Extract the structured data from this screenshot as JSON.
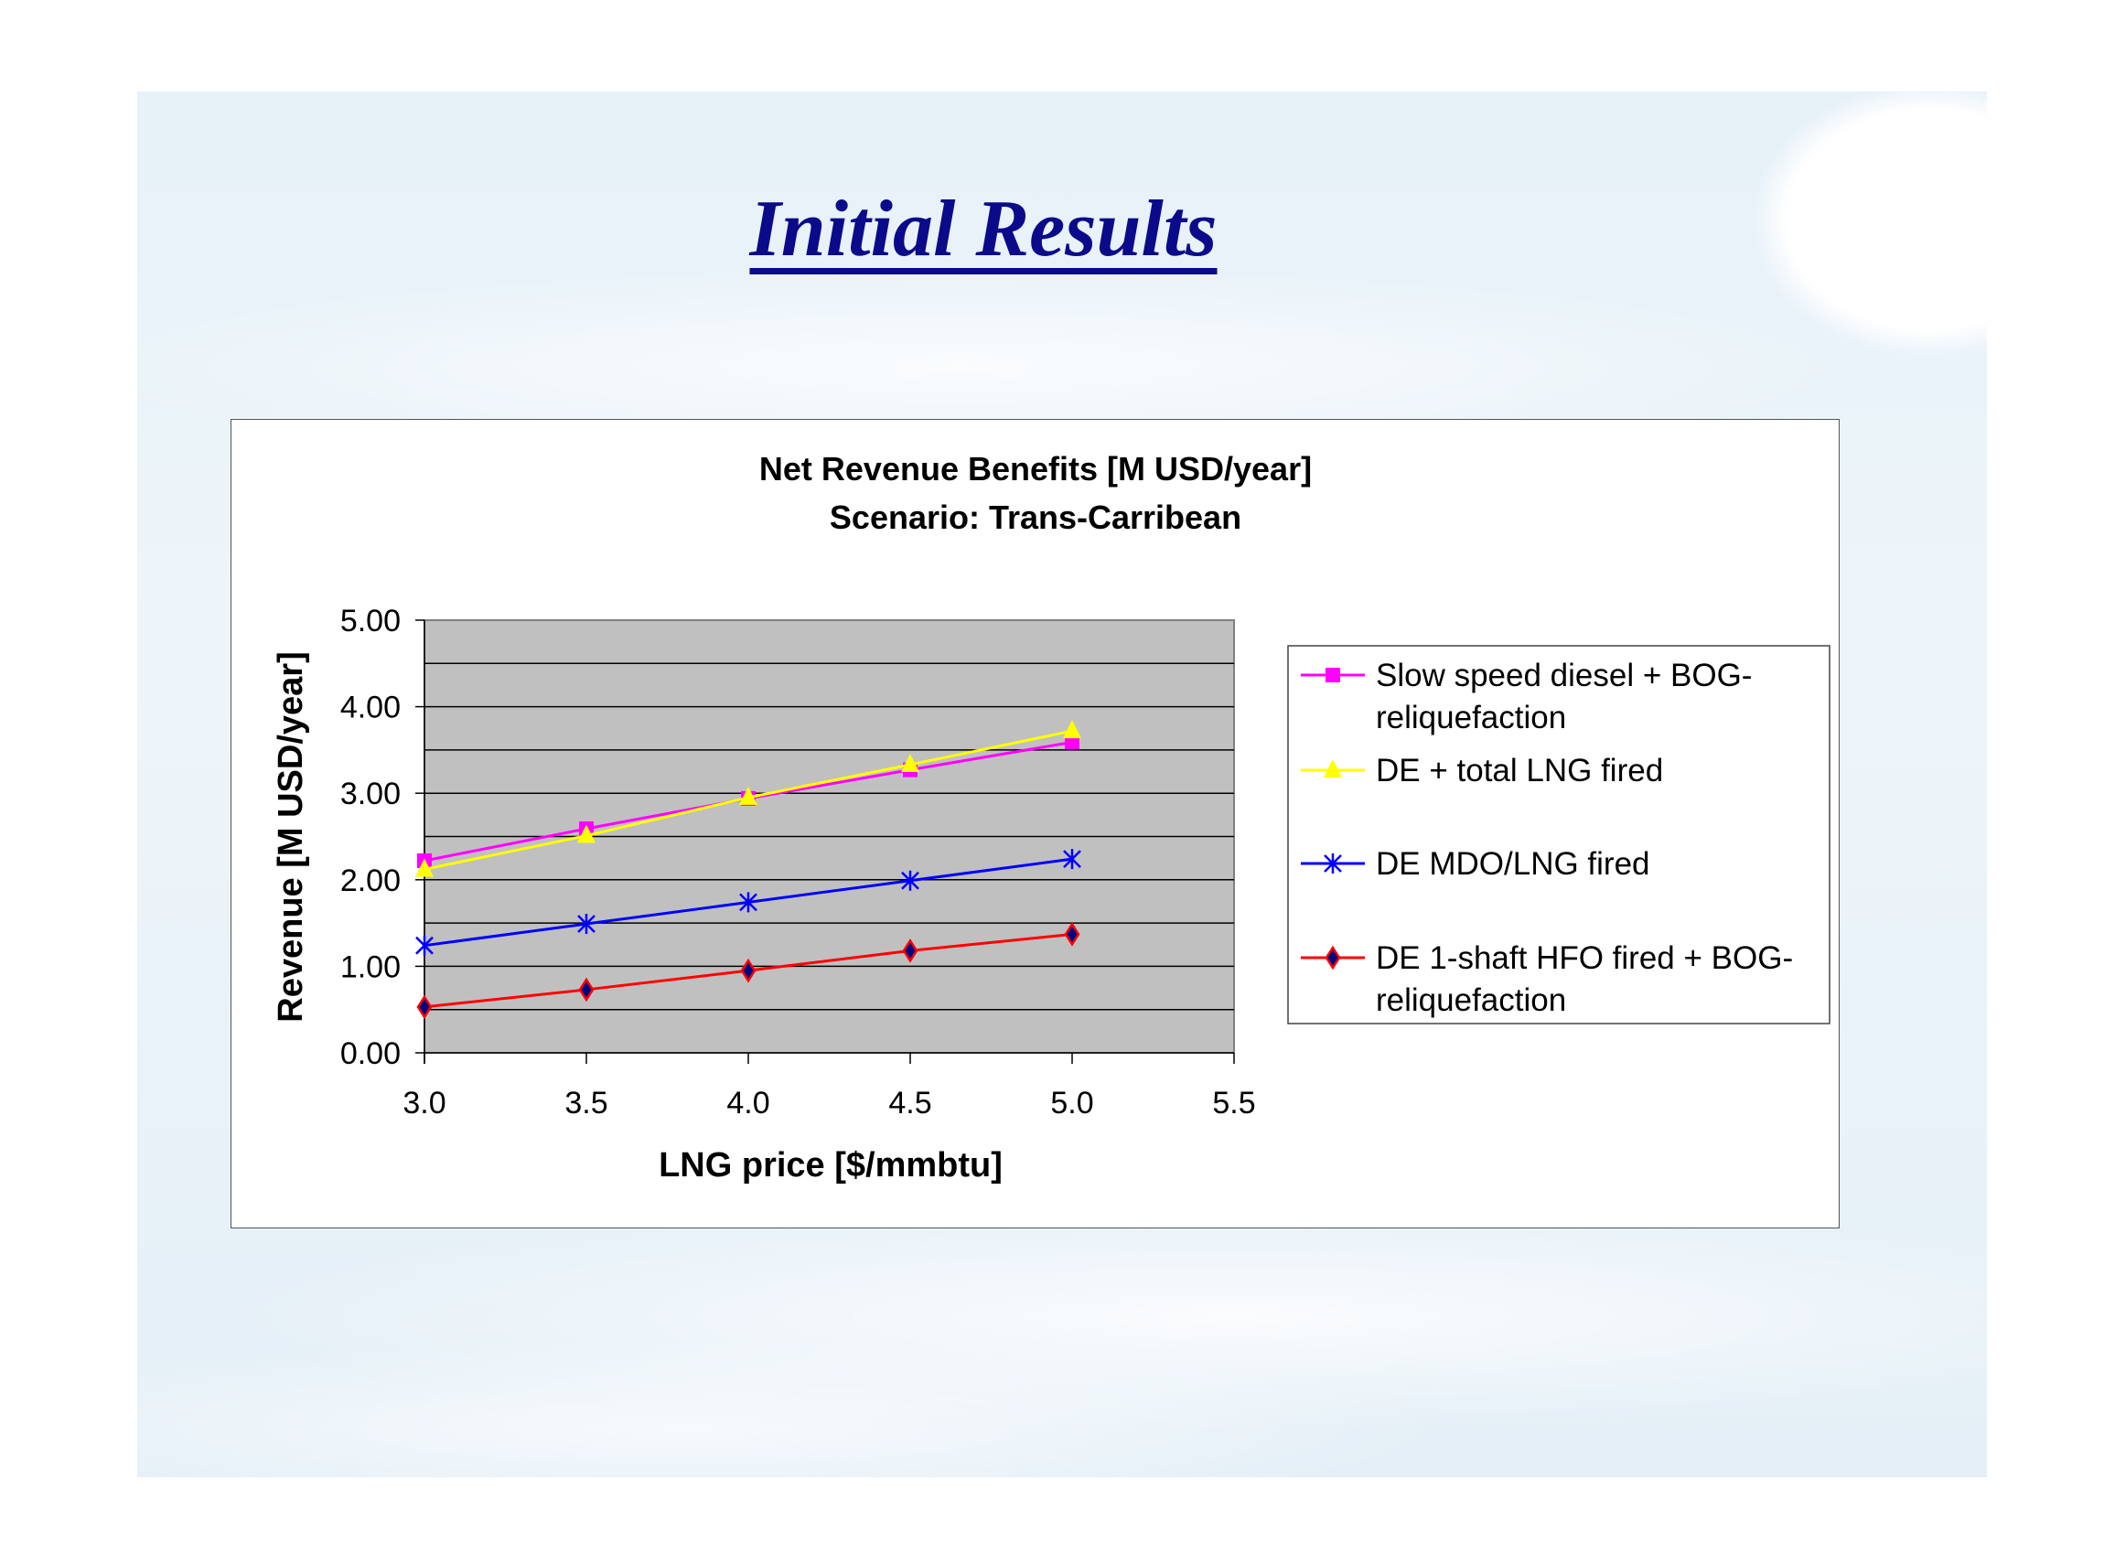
{
  "slide": {
    "title": "Initial Results"
  },
  "chart_data": {
    "type": "line",
    "title": "Net Revenue Benefits [M USD/year]",
    "subtitle": "Scenario: Trans-Carribean",
    "xlabel": "LNG price [$/mmbtu]",
    "ylabel": "Revenue [M USD/year]",
    "xlim": [
      3.0,
      5.5
    ],
    "ylim": [
      0.0,
      5.0
    ],
    "xticks": [
      "3.0",
      "3.5",
      "4.0",
      "4.5",
      "5.0",
      "5.5"
    ],
    "yticks": [
      "0.00",
      "1.00",
      "2.00",
      "3.00",
      "4.00",
      "5.00"
    ],
    "grid": true,
    "legend_position": "right",
    "x": [
      3.0,
      3.5,
      4.0,
      4.5,
      5.0
    ],
    "series": [
      {
        "name": "Slow speed diesel + BOG-reliquefaction",
        "legend_lines": [
          "Slow speed diesel + BOG-",
          "reliquefaction"
        ],
        "color": "#ff00ff",
        "marker": "square",
        "values": [
          2.22,
          2.59,
          2.94,
          3.27,
          3.59
        ]
      },
      {
        "name": "DE + total LNG fired",
        "legend_lines": [
          "DE + total LNG fired"
        ],
        "color": "#ffff00",
        "marker": "triangle",
        "values": [
          2.12,
          2.51,
          2.95,
          3.33,
          3.72
        ]
      },
      {
        "name": "DE MDO/LNG fired",
        "legend_lines": [
          "DE MDO/LNG fired"
        ],
        "color": "#0000ff",
        "marker": "asterisk",
        "values": [
          1.24,
          1.49,
          1.74,
          1.99,
          2.24
        ]
      },
      {
        "name": "DE 1-shaft HFO fired + BOG-reliquefaction",
        "legend_lines": [
          "DE 1-shaft HFO fired + BOG-",
          "reliquefaction"
        ],
        "color": "#ff0000",
        "marker": "diamond",
        "values": [
          0.53,
          0.73,
          0.95,
          1.18,
          1.37
        ]
      }
    ]
  }
}
